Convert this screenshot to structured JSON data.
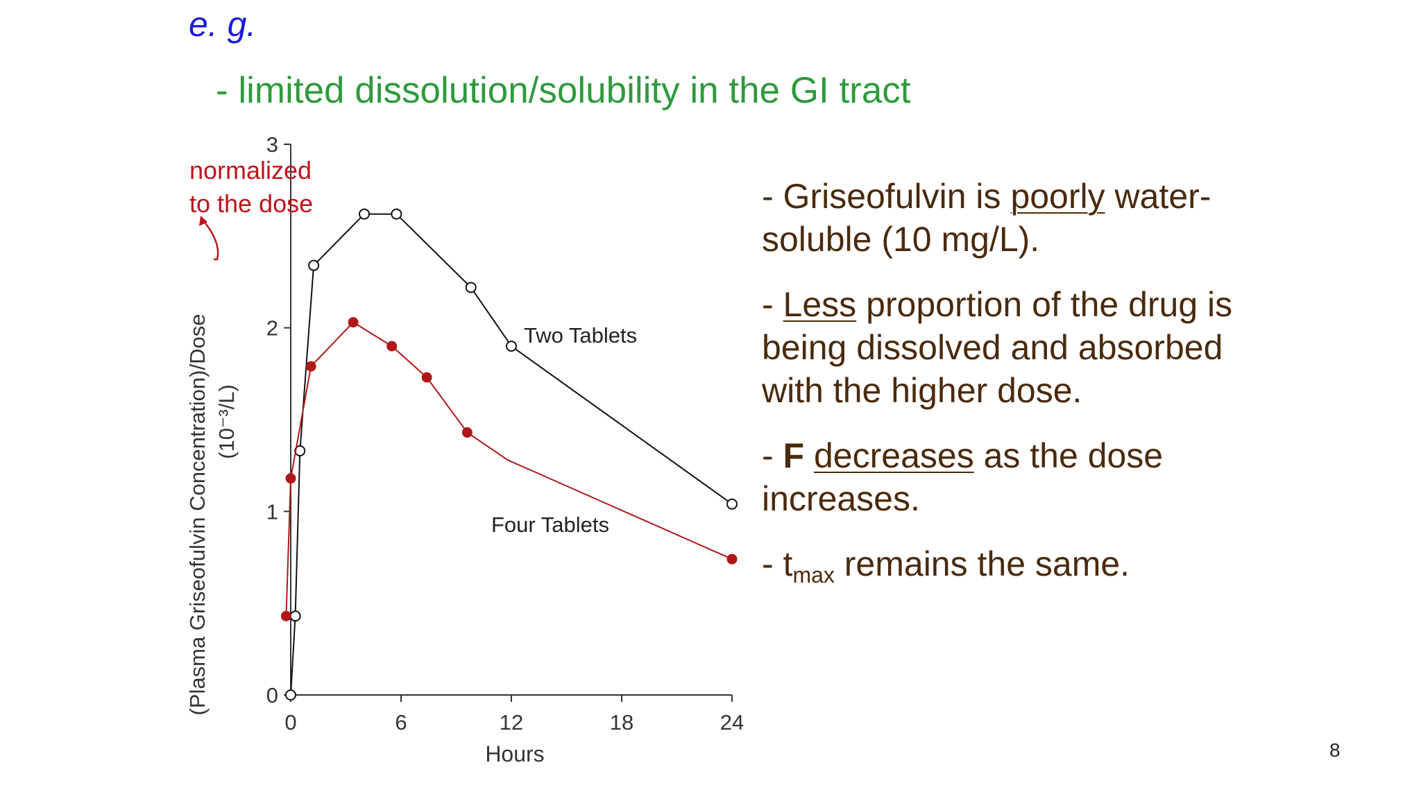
{
  "slide": {
    "eg": "e. g.",
    "subtitle": "- limited dissolution/solubility in the GI tract",
    "annotation_line1": "normalized",
    "annotation_line2": "to the dose",
    "page_number": "8",
    "bullets": [
      {
        "pre": "- Griseofulvin is ",
        "u": "poorly",
        "post": " water-soluble (10 mg/L)."
      },
      {
        "pre": "- ",
        "u": "Less",
        "post": " proportion of the drug is being dissolved and absorbed with the higher dose."
      },
      {
        "pre": "- ",
        "b": "F",
        "mid": " ",
        "u": "decreases",
        "post": " as the dose increases."
      },
      {
        "pre": "- t",
        "sub": "max",
        "post": " remains the same."
      }
    ]
  },
  "chart_data": {
    "type": "line",
    "xlabel": "Hours",
    "ylabel": "(Plasma Griseofulvin Concentration)/Dose",
    "ylabel_unit": "(10⁻³/L)",
    "xlim": [
      0,
      24
    ],
    "ylim": [
      0,
      3
    ],
    "xticks": [
      0,
      6,
      12,
      18,
      24
    ],
    "yticks": [
      0,
      1,
      2,
      3
    ],
    "colors": {
      "axis": "#333333",
      "series_two": "#111111",
      "series_four": "#b01818",
      "annotation": "#c0141c"
    },
    "series": [
      {
        "name": "Two Tablets",
        "marker": "open-circle",
        "x": [
          0,
          0.25,
          0.5,
          1.25,
          4,
          5.75,
          9.8,
          12,
          24
        ],
        "y": [
          0,
          0.43,
          1.33,
          2.34,
          2.62,
          2.62,
          2.22,
          1.9,
          1.04
        ]
      },
      {
        "name": "Four Tablets",
        "marker": "filled-circle",
        "x": [
          -0.25,
          0,
          1.1,
          3.4,
          5.5,
          7.4,
          9.6,
          11.8,
          24
        ],
        "y": [
          0.43,
          1.18,
          1.79,
          2.03,
          1.9,
          1.73,
          1.43,
          1.28,
          0.74
        ],
        "markers_at": [
          0,
          1,
          2,
          3,
          4,
          5,
          6,
          8
        ]
      }
    ]
  }
}
